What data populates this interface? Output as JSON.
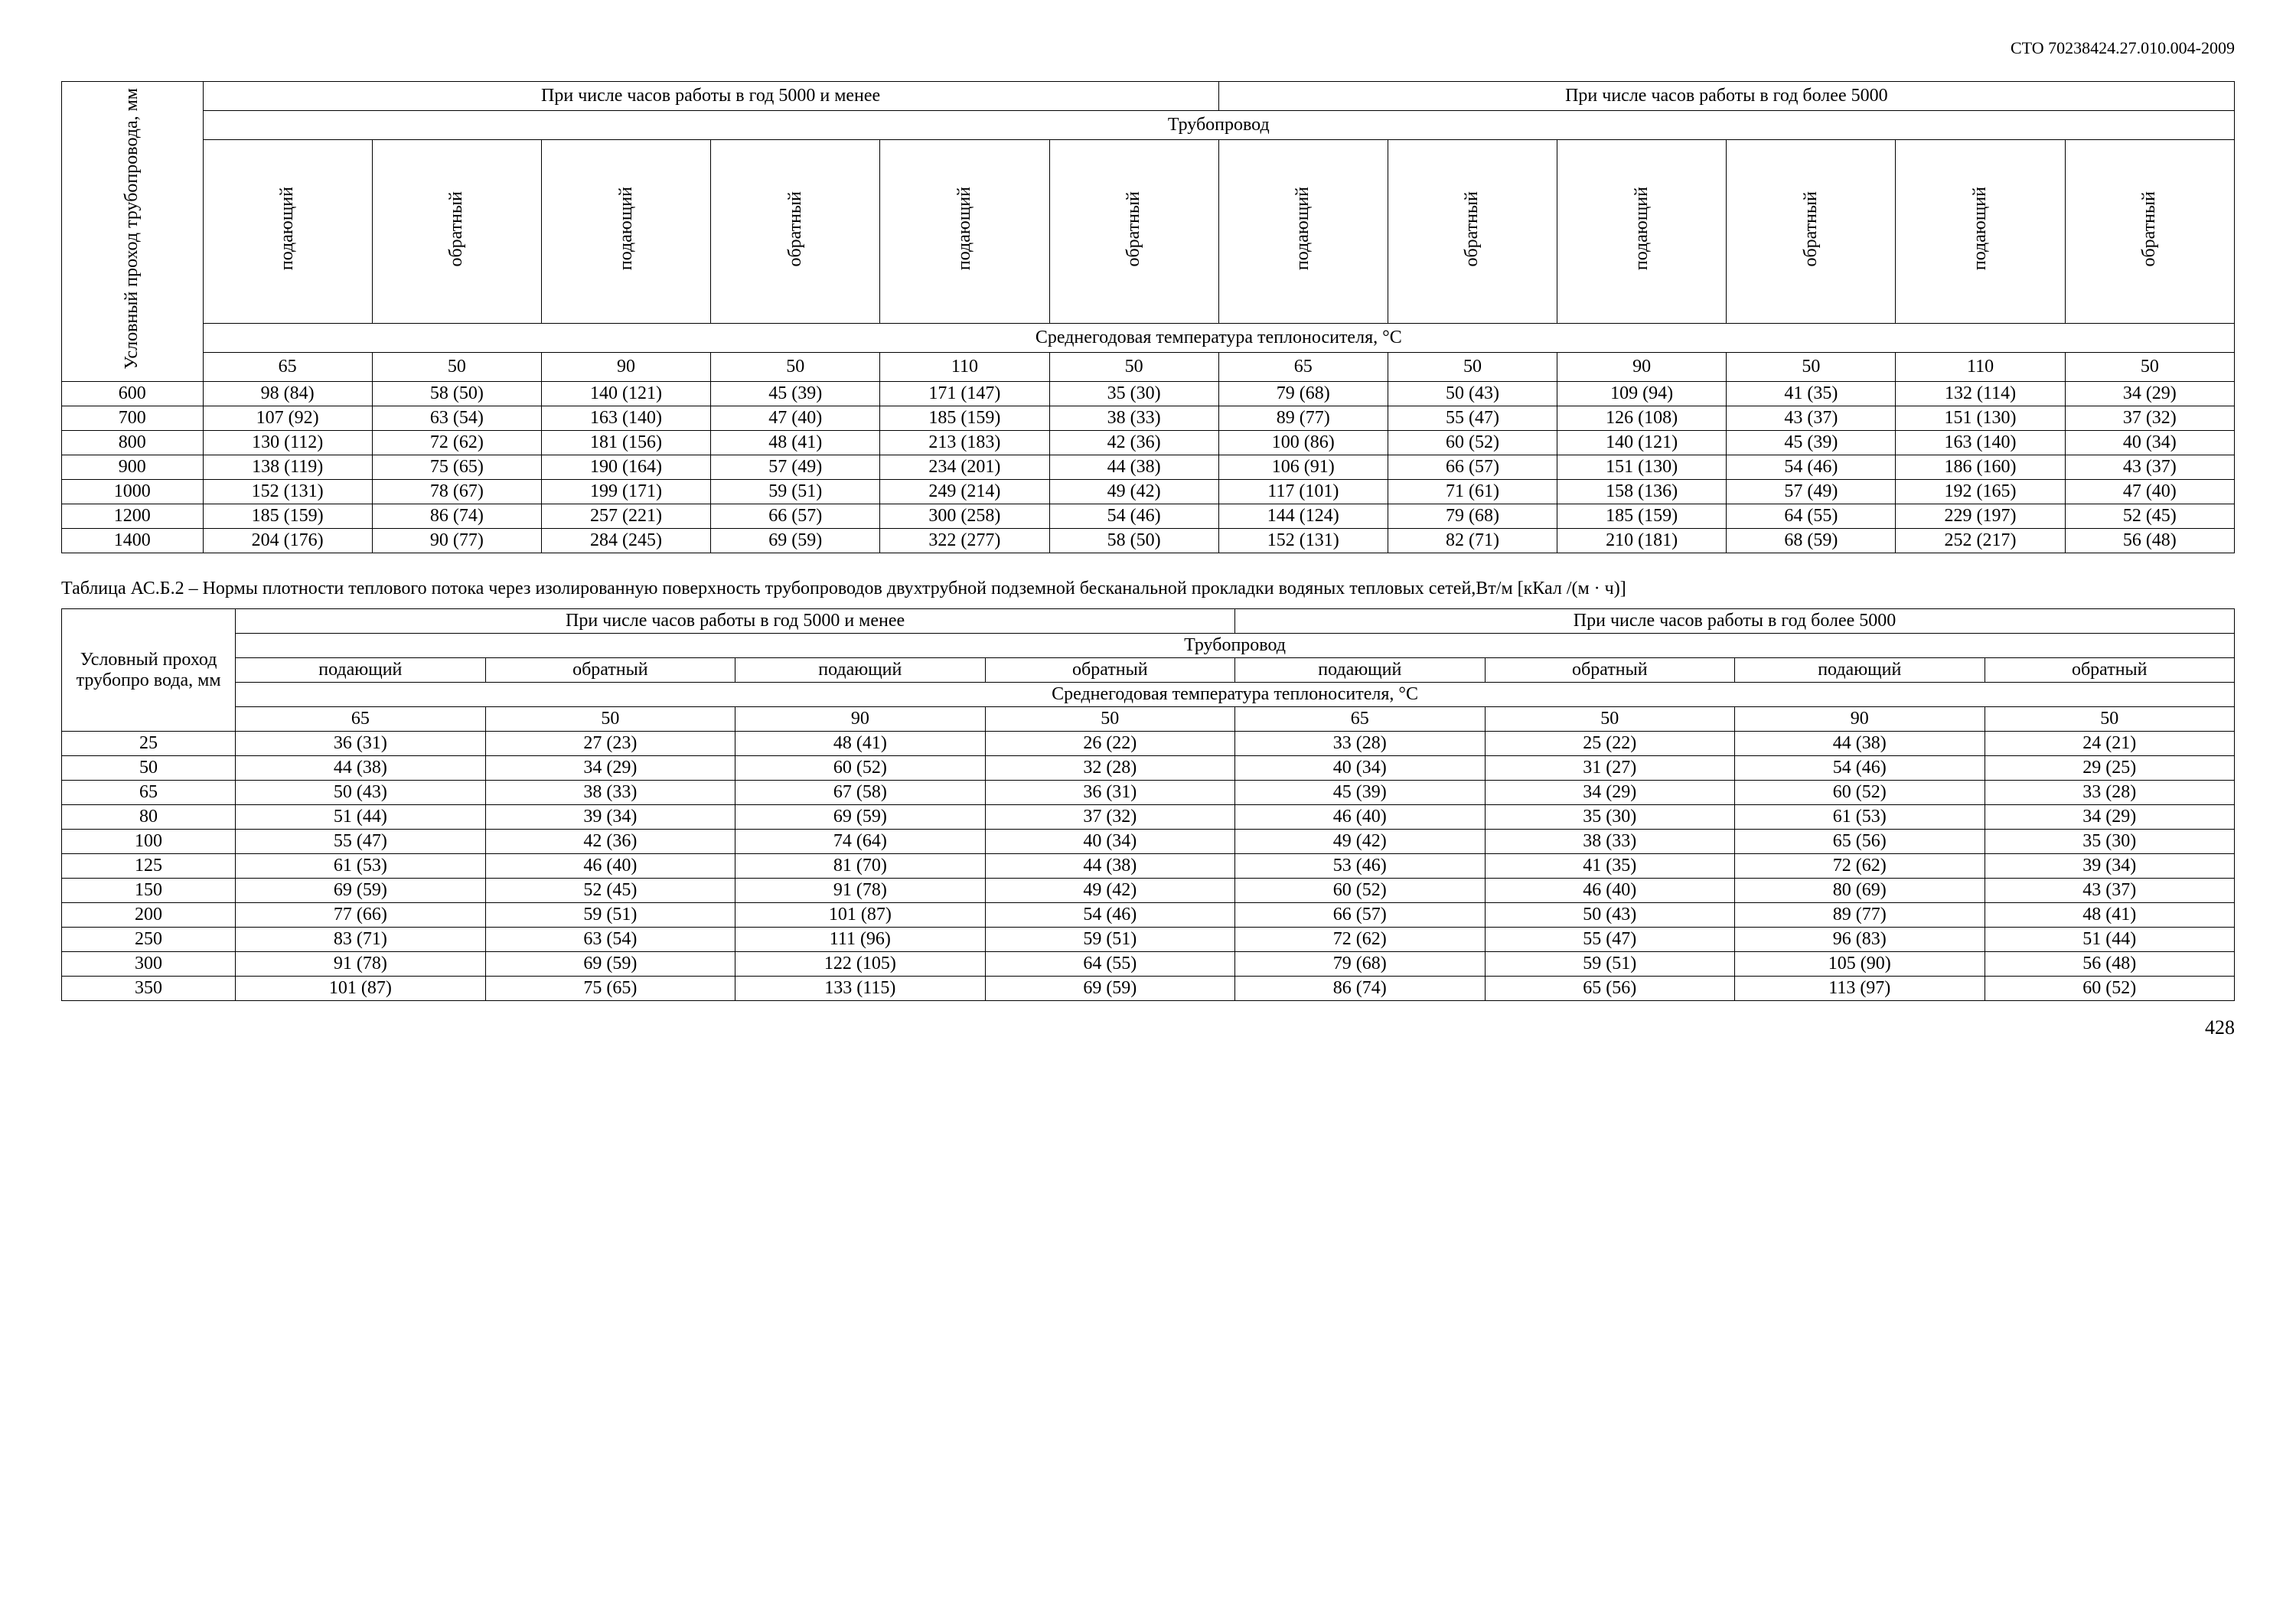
{
  "doc_code": "СТО 70238424.27.010.004-2009",
  "page_number": "428",
  "table1": {
    "row_header": "Условный проход трубопровода, мм",
    "h5000_less": "При числе часов работы в год 5000 и менее",
    "h5000_more": "При числе часов работы в год более 5000",
    "pipeline": "Трубопровод",
    "supply": "подающий",
    "return": "обратный",
    "avg_temp": "Среднегодовая температура теплоносителя, °С",
    "temps": [
      "65",
      "50",
      "90",
      "50",
      "110",
      "50",
      "65",
      "50",
      "90",
      "50",
      "110",
      "50"
    ],
    "rows": [
      [
        "600",
        "98 (84)",
        "58 (50)",
        "140 (121)",
        "45 (39)",
        "171 (147)",
        "35 (30)",
        "79 (68)",
        "50 (43)",
        "109 (94)",
        "41 (35)",
        "132 (114)",
        "34 (29)"
      ],
      [
        "700",
        "107 (92)",
        "63 (54)",
        "163 (140)",
        "47 (40)",
        "185 (159)",
        "38 (33)",
        "89 (77)",
        "55 (47)",
        "126 (108)",
        "43 (37)",
        "151 (130)",
        "37 (32)"
      ],
      [
        "800",
        "130 (112)",
        "72 (62)",
        "181 (156)",
        "48 (41)",
        "213 (183)",
        "42 (36)",
        "100 (86)",
        "60 (52)",
        "140 (121)",
        "45 (39)",
        "163 (140)",
        "40 (34)"
      ],
      [
        "900",
        "138 (119)",
        "75 (65)",
        "190 (164)",
        "57 (49)",
        "234 (201)",
        "44 (38)",
        "106 (91)",
        "66 (57)",
        "151 (130)",
        "54 (46)",
        "186 (160)",
        "43 (37)"
      ],
      [
        "1000",
        "152 (131)",
        "78 (67)",
        "199 (171)",
        "59 (51)",
        "249 (214)",
        "49 (42)",
        "117 (101)",
        "71 (61)",
        "158 (136)",
        "57 (49)",
        "192 (165)",
        "47 (40)"
      ],
      [
        "1200",
        "185 (159)",
        "86 (74)",
        "257 (221)",
        "66 (57)",
        "300 (258)",
        "54 (46)",
        "144 (124)",
        "79 (68)",
        "185 (159)",
        "64 (55)",
        "229 (197)",
        "52 (45)"
      ],
      [
        "1400",
        "204 (176)",
        "90 (77)",
        "284 (245)",
        "69 (59)",
        "322 (277)",
        "58 (50)",
        "152 (131)",
        "82 (71)",
        "210 (181)",
        "68 (59)",
        "252 (217)",
        "56 (48)"
      ]
    ]
  },
  "table2": {
    "caption": "Таблица АС.Б.2 – Нормы плотности теплового потока через изолированную поверхность трубопроводов двухтрубной подземной бесканальной прокладки водяных тепловых сетей,Вт/м [кКал /(м · ч)]",
    "row_header": "Условный проход трубопро вода, мм",
    "h5000_less": "При числе часов работы в год 5000 и менее",
    "h5000_more": "При числе часов работы в год более 5000",
    "pipeline": "Трубопровод",
    "supply": "подающий",
    "return": "обратный",
    "avg_temp": "Среднегодовая температура теплоносителя, °С",
    "temps": [
      "65",
      "50",
      "90",
      "50",
      "65",
      "50",
      "90",
      "50"
    ],
    "rows": [
      [
        "25",
        "36 (31)",
        "27 (23)",
        "48 (41)",
        "26 (22)",
        "33 (28)",
        "25 (22)",
        "44 (38)",
        "24 (21)"
      ],
      [
        "50",
        "44 (38)",
        "34 (29)",
        "60 (52)",
        "32 (28)",
        "40 (34)",
        "31 (27)",
        "54 (46)",
        "29 (25)"
      ],
      [
        "65",
        "50 (43)",
        "38 (33)",
        "67 (58)",
        "36 (31)",
        "45 (39)",
        "34 (29)",
        "60 (52)",
        "33 (28)"
      ],
      [
        "80",
        "51 (44)",
        "39 (34)",
        "69 (59)",
        "37 (32)",
        "46 (40)",
        "35 (30)",
        "61 (53)",
        "34 (29)"
      ],
      [
        "100",
        "55 (47)",
        "42 (36)",
        "74 (64)",
        "40 (34)",
        "49 (42)",
        "38 (33)",
        "65 (56)",
        "35 (30)"
      ],
      [
        "125",
        "61 (53)",
        "46 (40)",
        "81 (70)",
        "44 (38)",
        "53 (46)",
        "41 (35)",
        "72 (62)",
        "39 (34)"
      ],
      [
        "150",
        "69 (59)",
        "52 (45)",
        "91 (78)",
        "49 (42)",
        "60 (52)",
        "46 (40)",
        "80 (69)",
        "43 (37)"
      ],
      [
        "200",
        "77 (66)",
        "59 (51)",
        "101 (87)",
        "54 (46)",
        "66 (57)",
        "50 (43)",
        "89 (77)",
        "48 (41)"
      ],
      [
        "250",
        "83 (71)",
        "63 (54)",
        "111 (96)",
        "59 (51)",
        "72 (62)",
        "55 (47)",
        "96 (83)",
        "51 (44)"
      ],
      [
        "300",
        "91 (78)",
        "69 (59)",
        "122 (105)",
        "64 (55)",
        "79 (68)",
        "59 (51)",
        "105 (90)",
        "56 (48)"
      ],
      [
        "350",
        "101 (87)",
        "75 (65)",
        "133 (115)",
        "69 (59)",
        "86 (74)",
        "65 (56)",
        "113 (97)",
        "60 (52)"
      ]
    ]
  }
}
